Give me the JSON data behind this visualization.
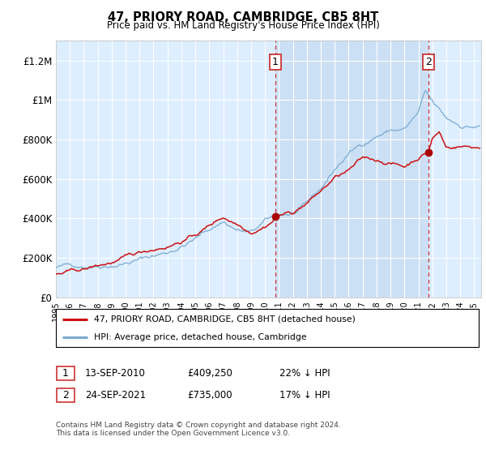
{
  "title": "47, PRIORY ROAD, CAMBRIDGE, CB5 8HT",
  "subtitle": "Price paid vs. HM Land Registry's House Price Index (HPI)",
  "background_color": "#ffffff",
  "plot_bg_color": "#ddeeff",
  "plot_bg_highlight": "#cce0f5",
  "grid_color": "#ffffff",
  "sale1_date_x": 2010.72,
  "sale1_label": "1",
  "sale1_price": 409250,
  "sale1_price_y": 409250,
  "sale1_text": "13-SEP-2010",
  "sale1_hpi_pct": "22% ↓ HPI",
  "sale2_date_x": 2021.72,
  "sale2_label": "2",
  "sale2_price": 735000,
  "sale2_price_y": 735000,
  "sale2_text": "24-SEP-2021",
  "sale2_hpi_pct": "17% ↓ HPI",
  "hpi_line_color": "#7aaad0",
  "price_line_color": "#cc1111",
  "sale_marker_color": "#aa0000",
  "dashed_line_color": "#cc3333",
  "legend_line1": "47, PRIORY ROAD, CAMBRIDGE, CB5 8HT (detached house)",
  "legend_line2": "HPI: Average price, detached house, Cambridge",
  "footnote": "Contains HM Land Registry data © Crown copyright and database right 2024.\nThis data is licensed under the Open Government Licence v3.0.",
  "ylim": [
    0,
    1300000
  ],
  "xlim_start": 1995,
  "xlim_end": 2025.5,
  "yticks": [
    0,
    200000,
    400000,
    600000,
    800000,
    1000000,
    1200000
  ],
  "ytick_labels": [
    "£0",
    "£200K",
    "£400K",
    "£600K",
    "£800K",
    "£1M",
    "£1.2M"
  ],
  "xticks": [
    1995,
    1996,
    1997,
    1998,
    1999,
    2000,
    2001,
    2002,
    2003,
    2004,
    2005,
    2006,
    2007,
    2008,
    2009,
    2010,
    2011,
    2012,
    2013,
    2014,
    2015,
    2016,
    2017,
    2018,
    2019,
    2020,
    2021,
    2022,
    2023,
    2024,
    2025
  ]
}
